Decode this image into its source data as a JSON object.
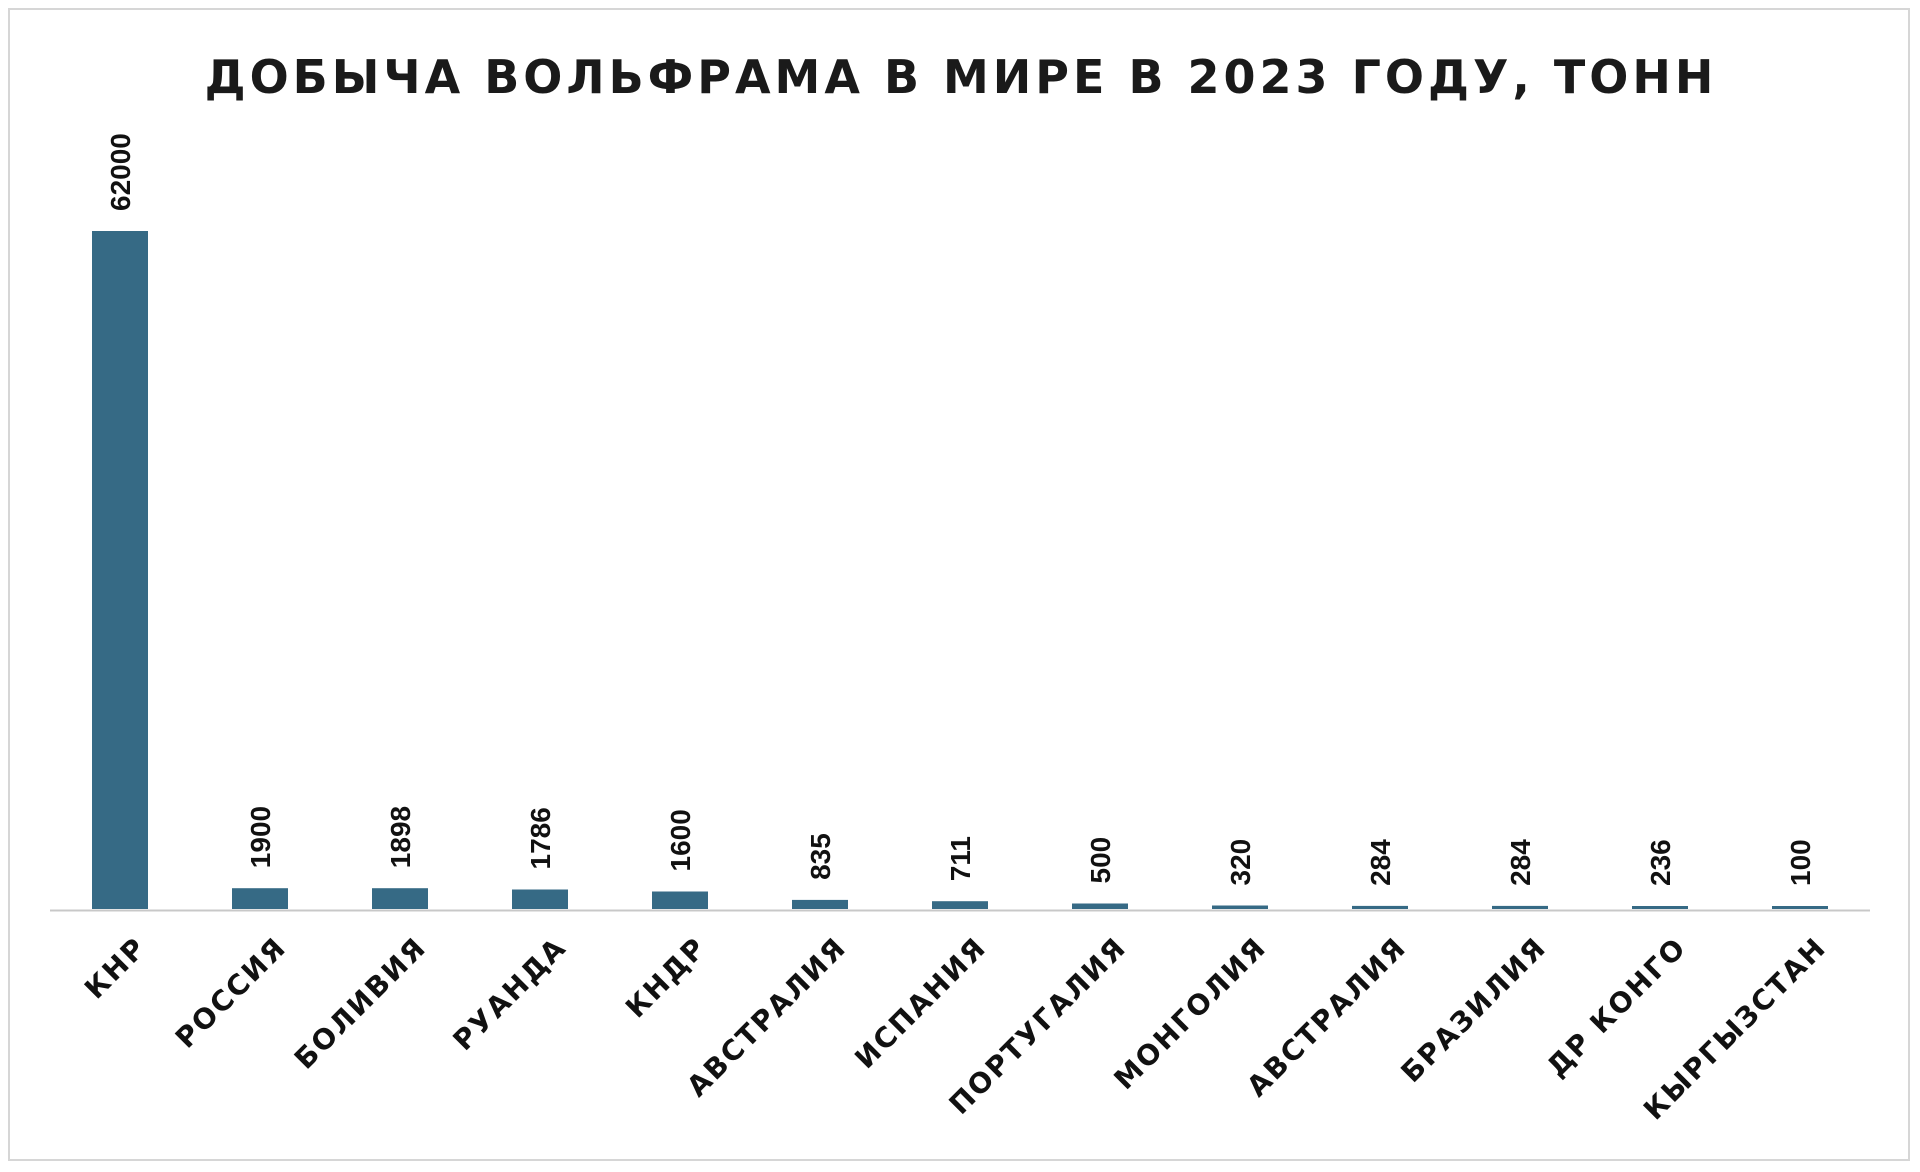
{
  "chart_data": {
    "type": "bar",
    "title": "ДОБЫЧА ВОЛЬФРАМА В МИРЕ В 2023 ГОДУ, ТОНН",
    "xlabel": "",
    "ylabel": "",
    "categories": [
      "КНР",
      "РОССИЯ",
      "БОЛИВИЯ",
      "РУАНДА",
      "КНДР",
      "АВСТРАЛИЯ",
      "ИСПАНИЯ",
      "ПОРТУГАЛИЯ",
      "МОНГОЛИЯ",
      "АВСТРАЛИЯ",
      "БРАЗИЛИЯ",
      "ДР КОНГО",
      "КЫРГЫЗСТАН"
    ],
    "values": [
      62000,
      1900,
      1898,
      1786,
      1600,
      835,
      711,
      500,
      320,
      284,
      284,
      236,
      100
    ],
    "ylim": [
      0,
      62000
    ],
    "grid": false,
    "legend": "none",
    "bar_color": "#366a85",
    "axis_color": "#c8c8c8"
  }
}
